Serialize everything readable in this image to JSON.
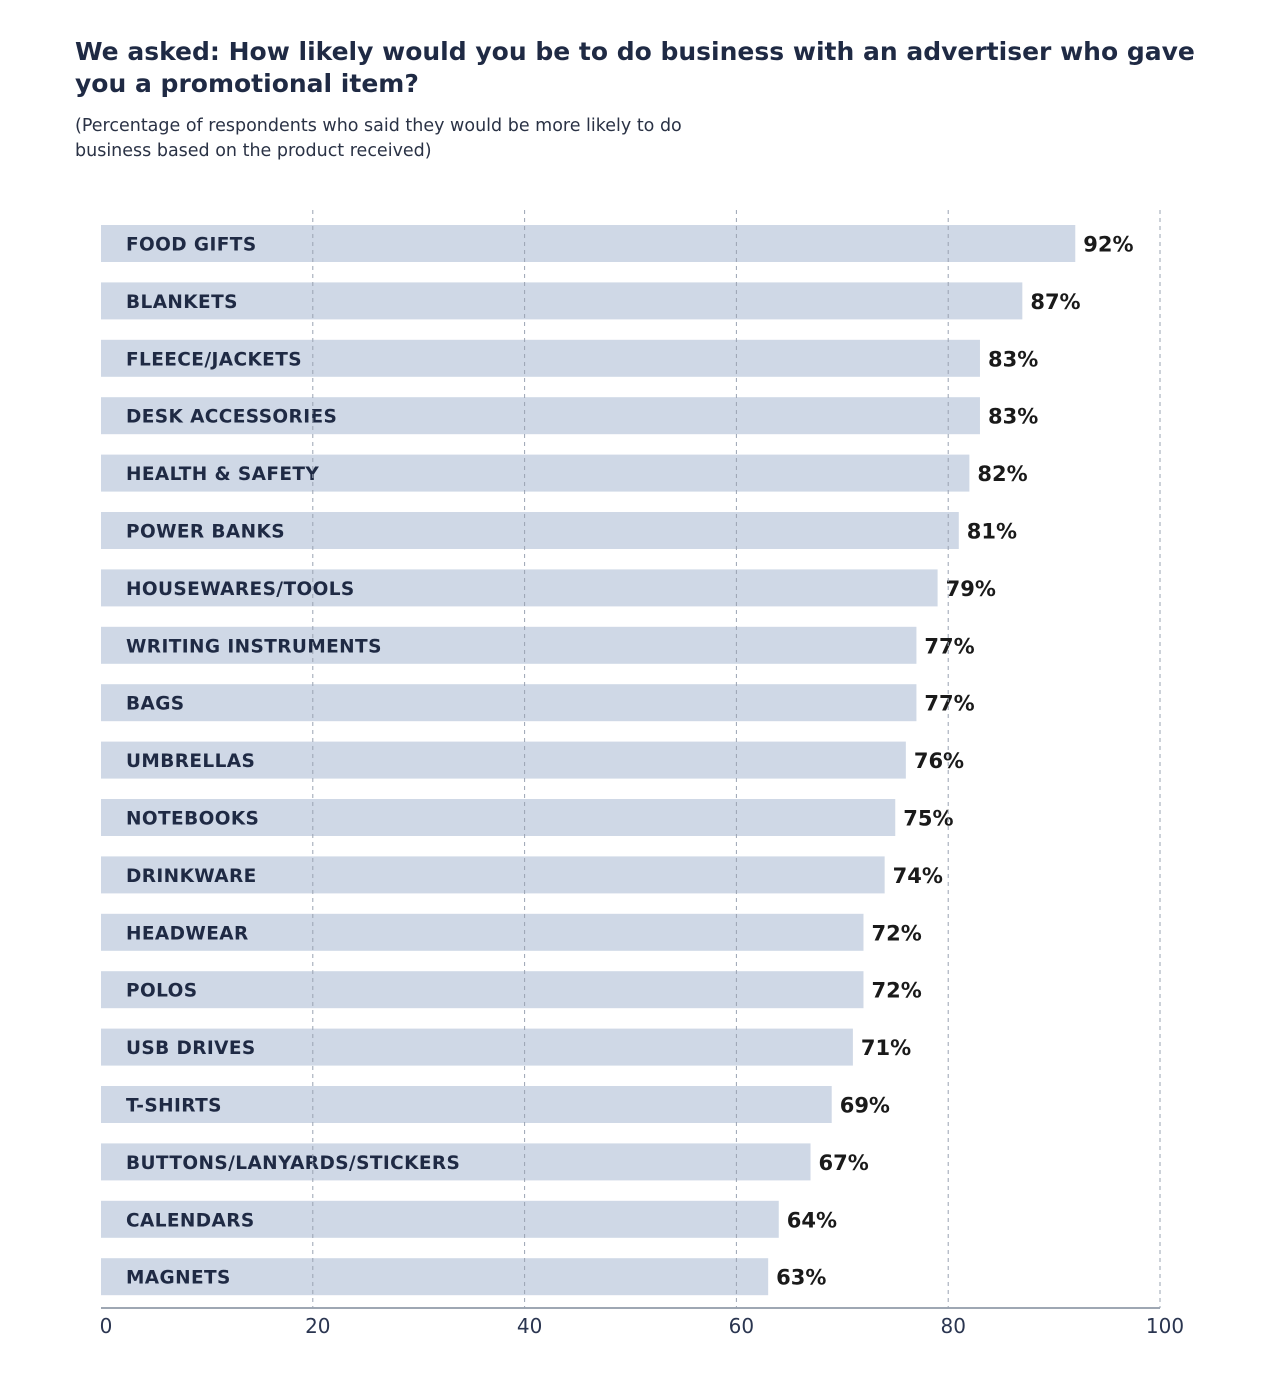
{
  "chart_data": {
    "type": "bar",
    "orientation": "horizontal",
    "title": "We asked: How likely would you be to do business with an advertiser who gave you a promotional item?",
    "subtitle": "(Percentage of respondents who said they would be more likely to do business based on the product received)",
    "xlabel": "",
    "ylabel": "",
    "xlim": [
      0,
      100
    ],
    "x_ticks": [
      0,
      20,
      40,
      60,
      80,
      100
    ],
    "grid": "vertical dashed",
    "value_suffix": "%",
    "categories": [
      "FOOD GIFTS",
      "BLANKETS",
      "FLEECE/JACKETS",
      "DESK ACCESSORIES",
      "HEALTH & SAFETY",
      "POWER BANKS",
      "HOUSEWARES/TOOLS",
      "WRITING INSTRUMENTS",
      "BAGS",
      "UMBRELLAS",
      "NOTEBOOKS",
      "DRINKWARE",
      "HEADWEAR",
      "POLOS",
      "USB DRIVES",
      "T-SHIRTS",
      "BUTTONS/LANYARDS/STICKERS",
      "CALENDARS",
      "MAGNETS"
    ],
    "values": [
      92,
      87,
      83,
      83,
      82,
      81,
      79,
      77,
      77,
      76,
      75,
      74,
      72,
      72,
      71,
      69,
      67,
      64,
      63
    ],
    "colors": {
      "bar": "#cfd8e6",
      "category_text": "#1f2a44",
      "value_text": "#1a1a1a",
      "grid": "#9aa3b2",
      "axis": "#7f8a9a"
    }
  }
}
